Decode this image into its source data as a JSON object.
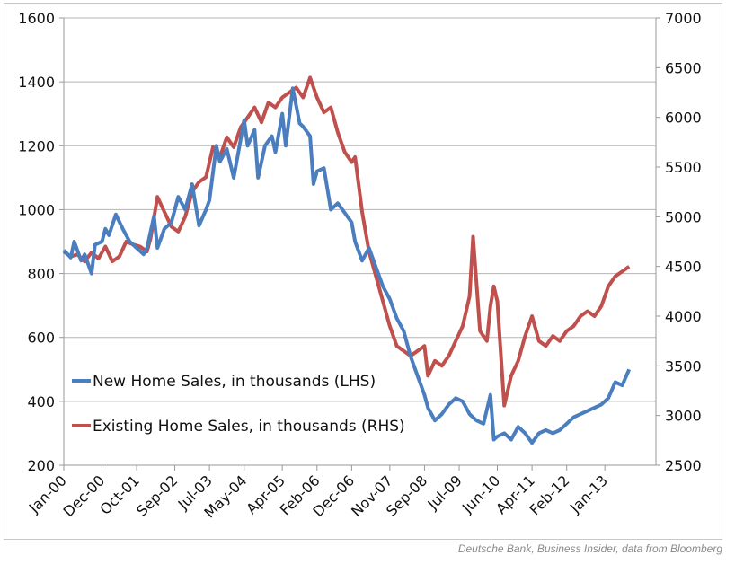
{
  "chart_data": {
    "type": "line",
    "title": "",
    "source": "Deutsche Bank, Business Insider, data from Bloomberg",
    "x_tick_labels": [
      "Jan-00",
      "Dec-00",
      "Oct-01",
      "Sep-02",
      "Jul-03",
      "May-04",
      "Apr-05",
      "Feb-06",
      "Dec-06",
      "Nov-07",
      "Sep-08",
      "Jul-09",
      "Jun-10",
      "Apr-11",
      "Feb-12",
      "Jan-13"
    ],
    "x_tick_months": [
      0,
      11,
      21,
      32,
      42,
      52,
      63,
      73,
      83,
      94,
      104,
      114,
      125,
      135,
      145,
      156
    ],
    "x_unit": "months since Jan-2000",
    "y_left": {
      "label": "New Home Sales, in thousands",
      "range": [
        200,
        1600
      ],
      "ticks": [
        200,
        400,
        600,
        800,
        1000,
        1200,
        1400,
        1600
      ]
    },
    "y_right": {
      "label": "Existing Home Sales, in thousands",
      "range": [
        2500,
        7000
      ],
      "ticks": [
        2500,
        3000,
        3500,
        4000,
        4500,
        5000,
        5500,
        6000,
        6500,
        7000
      ]
    },
    "grid": true,
    "legend_position": "bottom-left",
    "series": [
      {
        "name": "New Home Sales, in thousands (LHS)",
        "axis": "left",
        "color": "#4a7ebf",
        "x": [
          0,
          2,
          3,
          5,
          6,
          8,
          9,
          11,
          12,
          13,
          15,
          17,
          19,
          21,
          23,
          24,
          26,
          27,
          29,
          31,
          33,
          35,
          37,
          39,
          41,
          42,
          44,
          45,
          47,
          49,
          50,
          52,
          53,
          55,
          56,
          58,
          60,
          61,
          63,
          64,
          66,
          68,
          69,
          71,
          72,
          73,
          75,
          77,
          79,
          81,
          83,
          84,
          86,
          88,
          90,
          92,
          94,
          96,
          98,
          100,
          102,
          104,
          105,
          107,
          109,
          111,
          113,
          115,
          117,
          119,
          121,
          123,
          124,
          125,
          127,
          129,
          131,
          133,
          135,
          137,
          139,
          141,
          143,
          145,
          147,
          149,
          151,
          153,
          155,
          157,
          159,
          161,
          163
        ],
        "values": [
          873,
          850,
          900,
          840,
          860,
          800,
          890,
          900,
          940,
          920,
          985,
          940,
          900,
          880,
          860,
          880,
          980,
          880,
          940,
          960,
          1040,
          1000,
          1080,
          950,
          1000,
          1030,
          1200,
          1150,
          1190,
          1100,
          1160,
          1280,
          1200,
          1250,
          1100,
          1200,
          1230,
          1180,
          1300,
          1200,
          1380,
          1270,
          1260,
          1230,
          1080,
          1120,
          1130,
          1000,
          1020,
          990,
          960,
          900,
          840,
          880,
          820,
          760,
          720,
          660,
          620,
          540,
          480,
          420,
          380,
          340,
          360,
          390,
          410,
          400,
          360,
          340,
          330,
          420,
          280,
          290,
          300,
          280,
          320,
          300,
          270,
          300,
          310,
          300,
          310,
          330,
          350,
          360,
          370,
          380,
          390,
          410,
          460,
          450,
          500
        ]
      },
      {
        "name": "Existing Home Sales, in thousands (RHS)",
        "axis": "right",
        "color": "#c0504d",
        "x": [
          0,
          2,
          4,
          6,
          8,
          10,
          12,
          14,
          16,
          18,
          20,
          22,
          24,
          25,
          27,
          29,
          31,
          33,
          35,
          37,
          39,
          41,
          43,
          45,
          47,
          49,
          51,
          53,
          55,
          57,
          59,
          61,
          63,
          65,
          67,
          69,
          71,
          73,
          75,
          77,
          79,
          81,
          83,
          84,
          86,
          88,
          90,
          92,
          94,
          96,
          98,
          100,
          102,
          104,
          105,
          107,
          109,
          111,
          113,
          115,
          117,
          118,
          120,
          122,
          123,
          124,
          125,
          127,
          129,
          131,
          133,
          135,
          137,
          139,
          141,
          143,
          145,
          147,
          149,
          151,
          153,
          155,
          157,
          159,
          161,
          163
        ],
        "values": [
          4650,
          4600,
          4620,
          4550,
          4640,
          4580,
          4700,
          4550,
          4600,
          4750,
          4720,
          4700,
          4650,
          4780,
          5200,
          5050,
          4900,
          4850,
          5000,
          5250,
          5350,
          5400,
          5700,
          5600,
          5800,
          5700,
          5900,
          6000,
          6100,
          5950,
          6150,
          6100,
          6200,
          6250,
          6300,
          6200,
          6400,
          6200,
          6050,
          6100,
          5850,
          5650,
          5550,
          5600,
          5050,
          4650,
          4400,
          4150,
          3900,
          3700,
          3650,
          3600,
          3650,
          3700,
          3400,
          3550,
          3500,
          3600,
          3750,
          3900,
          4200,
          4800,
          3850,
          3750,
          4100,
          4300,
          4150,
          3100,
          3400,
          3550,
          3800,
          4000,
          3750,
          3700,
          3800,
          3750,
          3850,
          3900,
          4000,
          4050,
          4000,
          4100,
          4300,
          4400,
          4450,
          4500
        ]
      }
    ]
  }
}
